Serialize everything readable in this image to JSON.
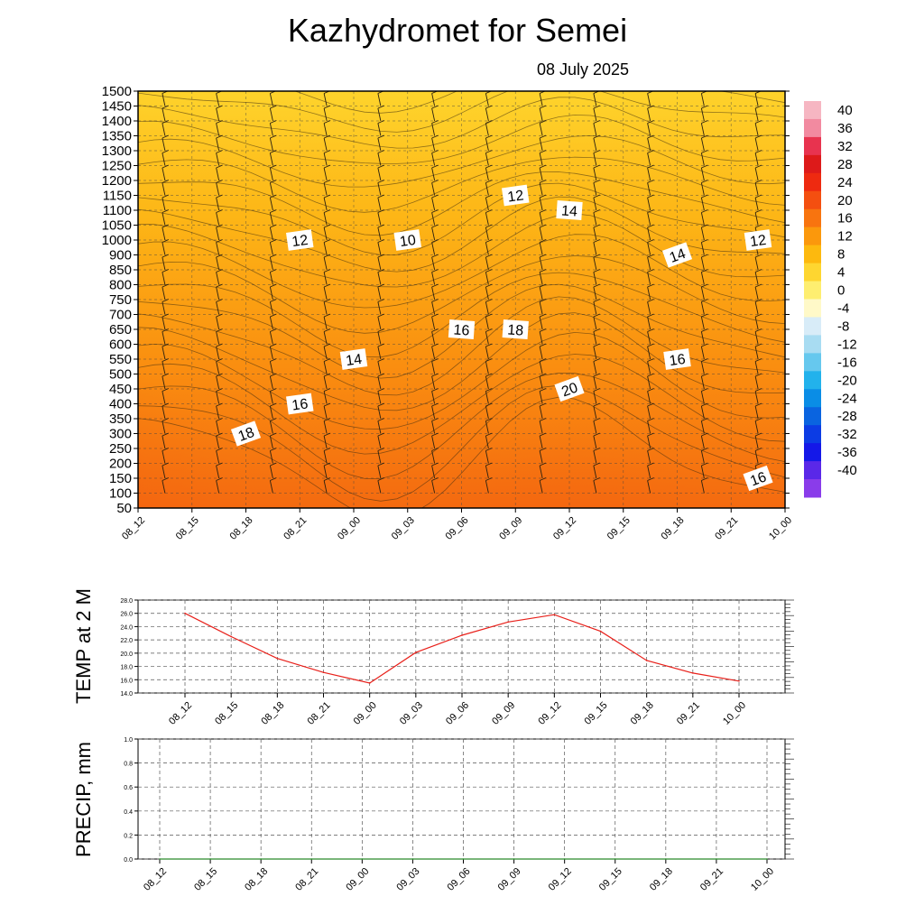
{
  "title": "Kazhydromet  for Semei",
  "subtitle": "08 July 2025",
  "chart_data": [
    {
      "type": "heatmap",
      "name": "temperature-cross-section",
      "time_labels": [
        "08_12",
        "08_15",
        "08_18",
        "08_21",
        "09_00",
        "09_03",
        "09_06",
        "09_09",
        "09_12",
        "09_15",
        "09_18",
        "09_21",
        "10_00"
      ],
      "height_ticks": [
        50,
        100,
        150,
        200,
        250,
        300,
        350,
        400,
        450,
        500,
        550,
        600,
        650,
        700,
        750,
        800,
        850,
        900,
        1000,
        1050,
        1100,
        1150,
        1200,
        1250,
        1300,
        1350,
        1400,
        1450,
        1500
      ],
      "contour_labels": [
        {
          "text": "12",
          "time": "08_21",
          "height": 1000
        },
        {
          "text": "10",
          "time": "09_03",
          "height": 1000
        },
        {
          "text": "12",
          "time": "09_09",
          "height": 1150
        },
        {
          "text": "14",
          "time": "09_12",
          "height": 1100
        },
        {
          "text": "14",
          "time": "09_18",
          "height": 900
        },
        {
          "text": "12",
          "time": "10_00",
          "height": 1000
        },
        {
          "text": "16",
          "time": "09_06",
          "height": 650
        },
        {
          "text": "18",
          "time": "09_09",
          "height": 650
        },
        {
          "text": "14",
          "time": "09_00",
          "height": 550
        },
        {
          "text": "16",
          "time": "09_18",
          "height": 550
        },
        {
          "text": "20",
          "time": "09_12",
          "height": 450
        },
        {
          "text": "16",
          "time": "08_21",
          "height": 400
        },
        {
          "text": "18",
          "time": "08_18",
          "height": 300
        },
        {
          "text": "16",
          "time": "10_00",
          "height": 150
        }
      ],
      "colorbar": {
        "labels": [
          "40",
          "36",
          "32",
          "28",
          "24",
          "20",
          "16",
          "12",
          "8",
          "4",
          "0",
          "-4",
          "-8",
          "-12",
          "-16",
          "-20",
          "-24",
          "-28",
          "-32",
          "-36",
          "-40"
        ],
        "colors": [
          "#f6b6c2",
          "#f28aa0",
          "#e8334f",
          "#dd1a1a",
          "#ee2a10",
          "#f44f10",
          "#f8740f",
          "#fb980c",
          "#fdb90e",
          "#fed630",
          "#feee70",
          "#fff9c8",
          "#d8ecf8",
          "#a8dcf2",
          "#66c8ee",
          "#22b2ec",
          "#0a8de6",
          "#0a64e0",
          "#0c3ce4",
          "#1418e8",
          "#5a28e8",
          "#8a3cea"
        ]
      }
    },
    {
      "type": "line",
      "name": "temp-2m",
      "ylabel": "TEMP at 2 M",
      "x": [
        "08_12",
        "08_15",
        "08_18",
        "08_21",
        "09_00",
        "09_03",
        "09_06",
        "09_09",
        "09_12",
        "09_15",
        "09_18",
        "09_21",
        "10_00"
      ],
      "y": [
        26.0,
        22.5,
        19.2,
        17.1,
        15.5,
        20.1,
        22.7,
        24.7,
        25.8,
        23.3,
        18.9,
        17.0,
        15.8
      ],
      "yticks": [
        "14.0",
        "16.0",
        "18.0",
        "20.0",
        "22.0",
        "24.0",
        "26.0",
        "28.0"
      ],
      "ylim": [
        14,
        28
      ],
      "line_color": "#e8201a",
      "grid": true
    },
    {
      "type": "line",
      "name": "precip",
      "ylabel": "PRECIP, mm",
      "x": [
        "08_12",
        "08_15",
        "08_18",
        "08_21",
        "09_00",
        "09_03",
        "09_06",
        "09_09",
        "09_12",
        "09_15",
        "09_18",
        "09_21",
        "10_00"
      ],
      "y": [
        0,
        0,
        0,
        0,
        0,
        0,
        0,
        0,
        0,
        0,
        0,
        0,
        0
      ],
      "yticks": [
        "0.0",
        "0.2",
        "0.4",
        "0.6",
        "0.8",
        "1.0"
      ],
      "ylim": [
        0,
        1
      ],
      "line_color": "#2a8a2a",
      "grid": true
    }
  ]
}
